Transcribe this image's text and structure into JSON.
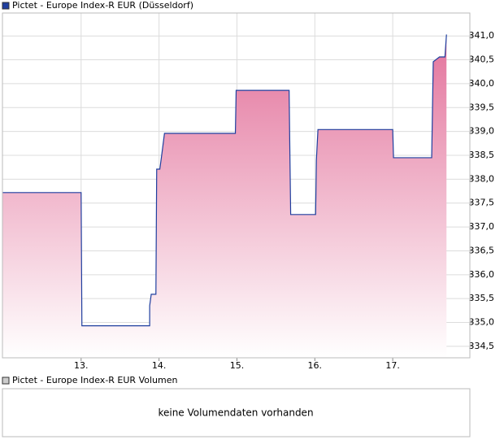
{
  "chart_data": {
    "type": "line",
    "legend": "Pictet - Europe Index-R EUR (Düsseldorf)",
    "x": [
      11.99,
      13.0,
      13.01,
      13.88,
      13.88,
      13.9,
      13.96,
      13.97,
      14.01,
      14.03,
      14.07,
      14.98,
      14.99,
      15.67,
      15.68,
      15.69,
      16.01,
      16.02,
      16.04,
      17.0,
      17.01,
      17.5,
      17.52,
      17.6,
      17.67,
      17.69
    ],
    "series": [
      {
        "name": "Pictet - Europe Index-R EUR (Düsseldorf)",
        "color": "#1f3f9f",
        "values": [
          337.72,
          337.72,
          334.93,
          334.93,
          335.35,
          335.59,
          335.59,
          338.21,
          338.21,
          338.45,
          338.96,
          338.96,
          339.86,
          339.86,
          338.52,
          337.26,
          337.26,
          338.4,
          339.04,
          339.04,
          338.45,
          338.45,
          340.46,
          340.56,
          340.56,
          341.03
        ]
      }
    ],
    "fill_top": "#e3739c",
    "fill_bottom": "#ffffff",
    "xlim": [
      11.99,
      17.99
    ],
    "xticks": [
      {
        "value": 13,
        "label": "13."
      },
      {
        "value": 14,
        "label": "14."
      },
      {
        "value": 15,
        "label": "15."
      },
      {
        "value": 16,
        "label": "16."
      },
      {
        "value": 17,
        "label": "17."
      }
    ],
    "ylim": [
      334.26,
      341.48
    ],
    "yticks": [
      {
        "value": 334.5,
        "label": "334,5"
      },
      {
        "value": 335,
        "label": "335,0"
      },
      {
        "value": 335.5,
        "label": "335,5"
      },
      {
        "value": 336,
        "label": "336,0"
      },
      {
        "value": 336.5,
        "label": "336,5"
      },
      {
        "value": 337,
        "label": "337,0"
      },
      {
        "value": 337.5,
        "label": "337,5"
      },
      {
        "value": 338,
        "label": "338,0"
      },
      {
        "value": 338.5,
        "label": "338,5"
      },
      {
        "value": 339,
        "label": "339,0"
      },
      {
        "value": 339.5,
        "label": "339,5"
      },
      {
        "value": 340,
        "label": "340,0"
      },
      {
        "value": 340.5,
        "label": "340,5"
      },
      {
        "value": 341,
        "label": "341,0"
      }
    ],
    "grid": true,
    "volume_legend": "Pictet - Europe Index-R EUR Volumen",
    "volume_message": "keine Volumendaten vorhanden"
  }
}
